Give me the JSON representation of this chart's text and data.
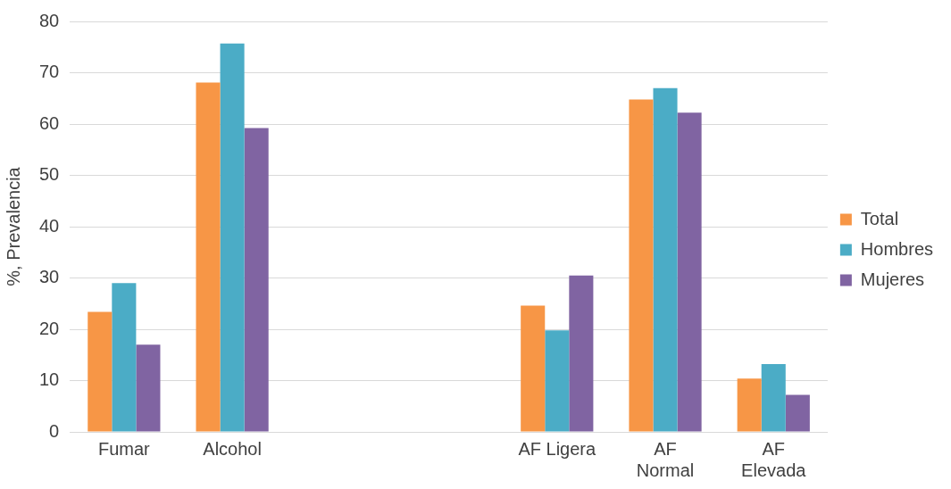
{
  "chart_data": {
    "type": "bar",
    "ylabel": "%, Prevalencia",
    "categories": [
      "Fumar",
      "Alcohol",
      null,
      null,
      "AF Ligera",
      "AF\nNormal",
      "AF\nElevada"
    ],
    "series": [
      {
        "name": "Total",
        "color": "#f79646",
        "values": [
          23.4,
          68.1,
          null,
          null,
          24.6,
          64.8,
          10.4
        ]
      },
      {
        "name": "Hombres",
        "color": "#4bacc6",
        "values": [
          29.0,
          75.7,
          null,
          null,
          19.8,
          67.0,
          13.2
        ]
      },
      {
        "name": "Mujeres",
        "color": "#8064a2",
        "values": [
          17.0,
          59.2,
          null,
          null,
          30.5,
          62.2,
          7.2
        ]
      }
    ],
    "ylim": [
      0,
      80
    ],
    "yticks": [
      0,
      10,
      20,
      30,
      40,
      50,
      60,
      70,
      80
    ],
    "grid": "y",
    "legend": "right"
  }
}
